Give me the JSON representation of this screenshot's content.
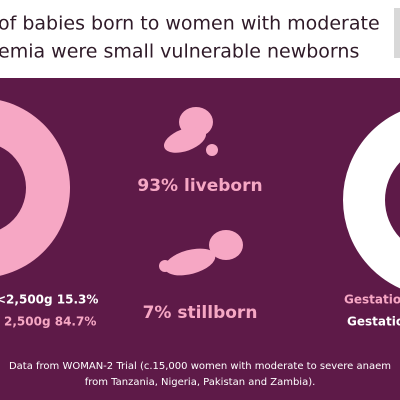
{
  "header": {
    "lines": [
      "of babies born to women with moderate",
      "emia were small vulnerable newborns"
    ]
  },
  "left_donut": {
    "values": [
      84.7,
      15.3
    ],
    "colors": [
      "#f6a7c4",
      "#ffffff"
    ],
    "labels": [
      "<2,500g 15.3%",
      "2,500g 84.7%"
    ]
  },
  "right_donut": {
    "labels": [
      "Gestation",
      "Gestation"
    ]
  },
  "middle": {
    "liveborn": "93% liveborn",
    "stillborn": "7% stillborn"
  },
  "footer": {
    "lines": [
      "Data from WOMAN-2 Trial (c.15,000 women with moderate to severe anaem",
      "from Tanzania, Nigeria, Pakistan and Zambia)."
    ]
  }
}
